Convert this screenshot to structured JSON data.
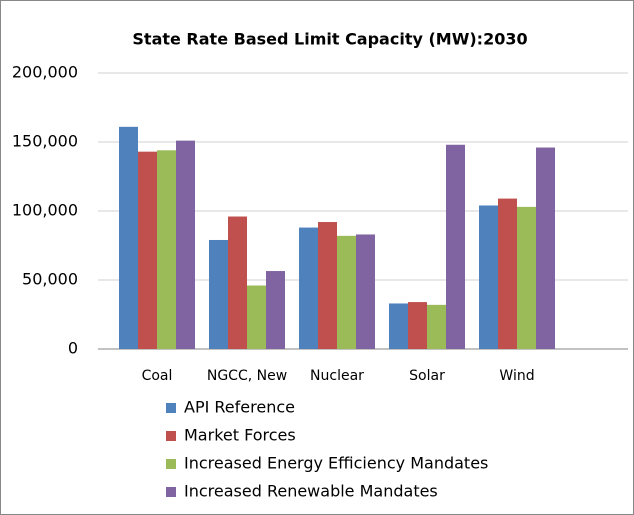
{
  "chart_data": {
    "type": "bar",
    "title": "State Rate Based Limit Capacity (MW):2030",
    "categories": [
      "Coal",
      "NGCC, New",
      "Nuclear",
      "Solar",
      "Wind"
    ],
    "series": [
      {
        "name": "API Reference",
        "color": "#4f81bd",
        "values": [
          161000,
          79000,
          88000,
          33000,
          104000
        ]
      },
      {
        "name": "Market Forces",
        "color": "#c0504d",
        "values": [
          143000,
          96000,
          92000,
          34000,
          109000
        ]
      },
      {
        "name": "Increased Energy Efficiency Mandates",
        "color": "#9bbb59",
        "values": [
          144000,
          46000,
          82000,
          32000,
          103000
        ]
      },
      {
        "name": "Increased Renewable Mandates",
        "color": "#8064a2",
        "values": [
          151000,
          56500,
          83000,
          148000,
          146000
        ]
      }
    ],
    "ylim": [
      0,
      200000
    ],
    "yticks": [
      0,
      {
        "value": 50000,
        "label": "50,000"
      },
      {
        "value": 100000,
        "label": "100,000"
      },
      {
        "value": 150000,
        "label": "150,000"
      },
      {
        "value": 200000,
        "label": "200,000"
      }
    ],
    "grid": true,
    "legend": "bottom"
  }
}
